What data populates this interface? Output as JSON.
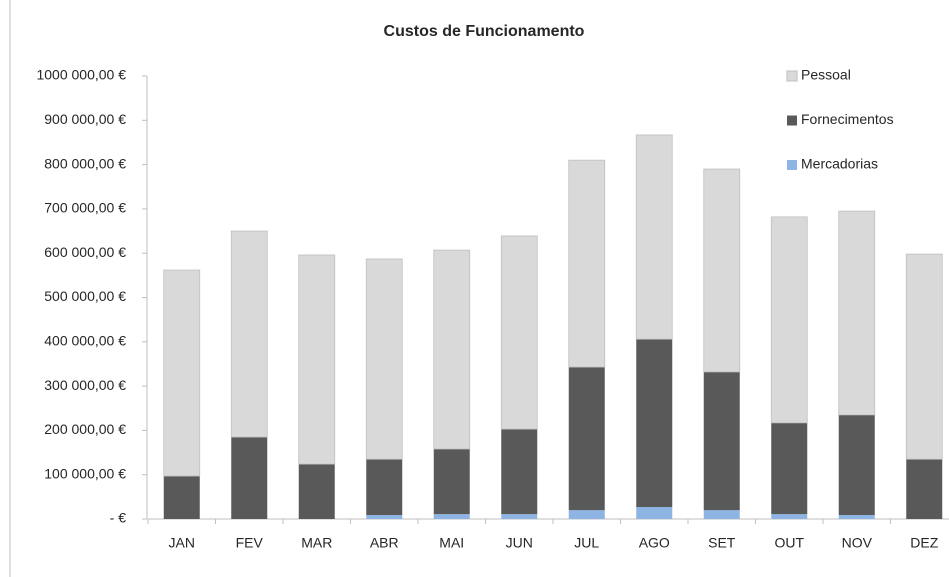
{
  "chart_data": {
    "type": "bar",
    "stacked": true,
    "title": "Custos de Funcionamento",
    "categories": [
      "JAN",
      "FEV",
      "MAR",
      "ABR",
      "MAI",
      "JUN",
      "JUL",
      "AGO",
      "SET",
      "OUT",
      "NOV",
      "DEZ"
    ],
    "series": [
      {
        "name": "Mercadorias",
        "color": "#8db4e2",
        "values": [
          0,
          0,
          0,
          9000,
          11000,
          11000,
          20000,
          27000,
          20000,
          11000,
          9000,
          0
        ]
      },
      {
        "name": "Fornecimentos",
        "color": "#595959",
        "values": [
          97000,
          185000,
          124000,
          126000,
          147000,
          192000,
          323000,
          379000,
          312000,
          206000,
          226000,
          135000
        ]
      },
      {
        "name": "Pessoal",
        "color": "#d9d9d9",
        "values": [
          465000,
          465000,
          472000,
          452000,
          449000,
          436000,
          467000,
          461000,
          458000,
          465000,
          460000,
          463000
        ]
      }
    ],
    "ylim": [
      0,
      1000000
    ],
    "yticks": [
      {
        "value": 0,
        "label": "-  €"
      },
      {
        "value": 100000,
        "label": "100 000,00 €"
      },
      {
        "value": 200000,
        "label": "200 000,00 €"
      },
      {
        "value": 300000,
        "label": "300 000,00 €"
      },
      {
        "value": 400000,
        "label": "400 000,00 €"
      },
      {
        "value": 500000,
        "label": "500 000,00 €"
      },
      {
        "value": 600000,
        "label": "600 000,00 €"
      },
      {
        "value": 700000,
        "label": "700 000,00 €"
      },
      {
        "value": 800000,
        "label": "800 000,00 €"
      },
      {
        "value": 900000,
        "label": "900 000,00 €"
      },
      {
        "value": 1000000,
        "label": "1000 000,00 €"
      }
    ],
    "grid": false,
    "legend": "upper right"
  }
}
